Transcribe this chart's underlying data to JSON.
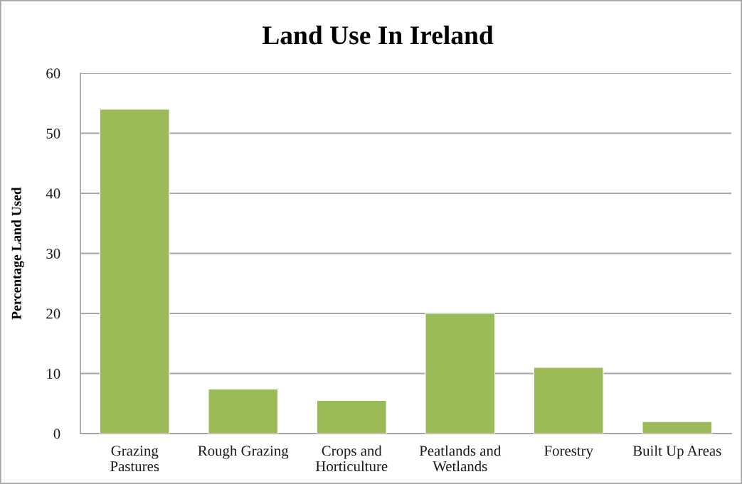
{
  "chart_data": {
    "type": "bar",
    "title": "Land Use In Ireland",
    "ylabel": "Percentage Land Used",
    "categories": [
      "Grazing\nPastures",
      "Rough Grazing",
      "Crops and\nHorticulture",
      "Peatlands and\nWetlands",
      "Forestry",
      "Built Up Areas"
    ],
    "values": [
      54,
      7.4,
      5.5,
      20,
      11,
      2
    ],
    "color": "#9bbb59",
    "ylim": [
      0,
      60
    ],
    "yticks": [
      0,
      10,
      20,
      30,
      40,
      50,
      60
    ],
    "grid": "y",
    "legend": false
  }
}
